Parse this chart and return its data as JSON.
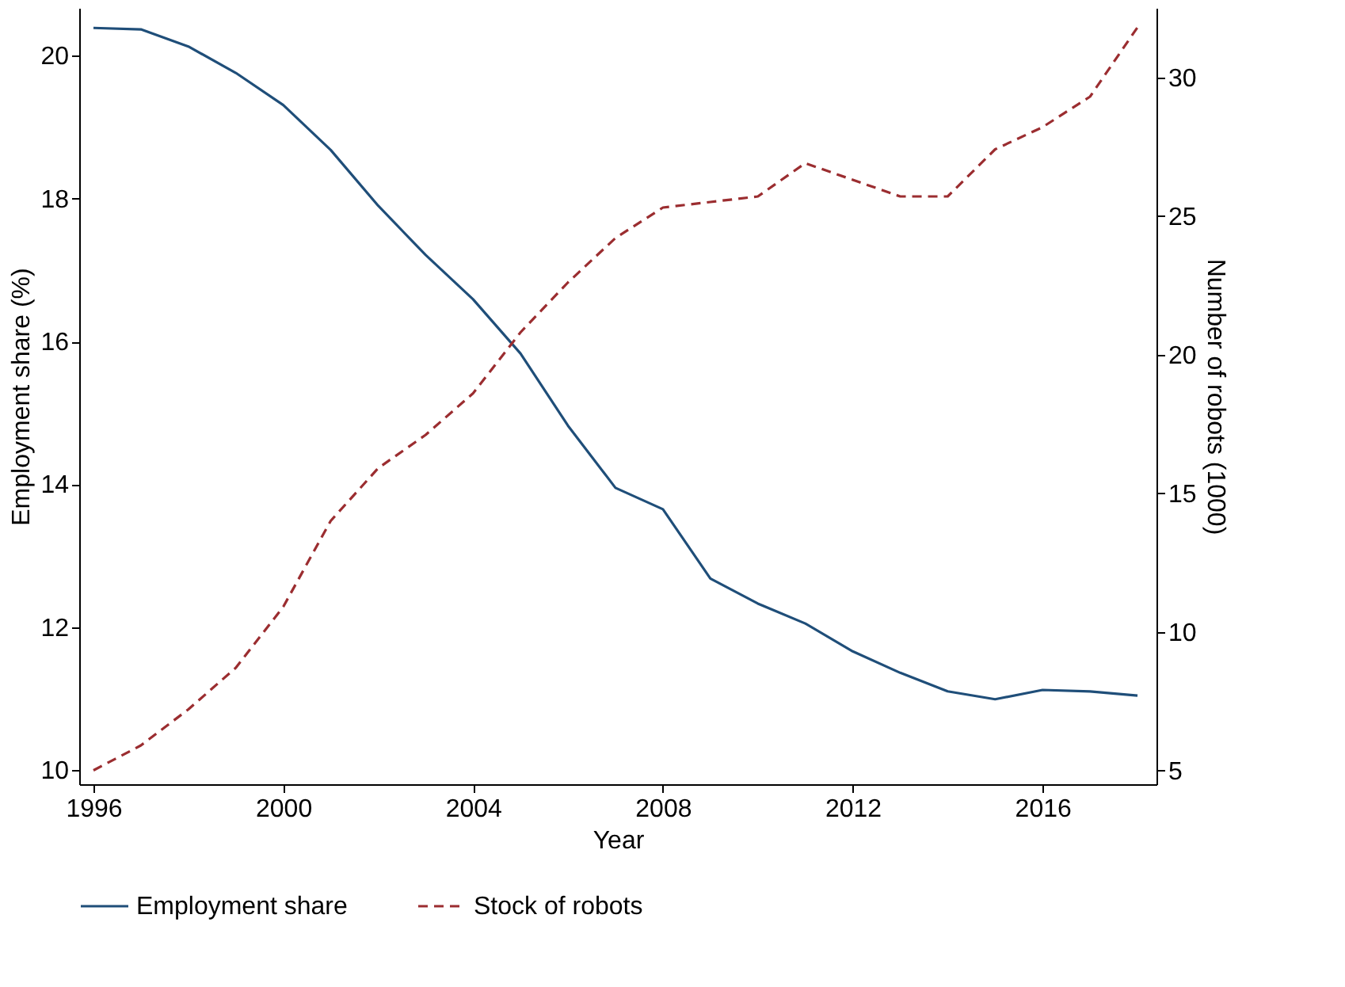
{
  "chart_data": {
    "type": "line",
    "xlabel": "Year",
    "ylabel": "Employment share (%)",
    "y2label": "Number of robots (1000)",
    "x": [
      1996,
      1997,
      1998,
      1999,
      2000,
      2001,
      2002,
      2003,
      2004,
      2005,
      2006,
      2007,
      2008,
      2009,
      2010,
      2011,
      2012,
      2013,
      2014,
      2015,
      2016,
      2017,
      2018
    ],
    "series": [
      {
        "name": "Employment share",
        "color": "#1f4e79",
        "line_style": "solid",
        "values": [
          20.39,
          20.37,
          20.13,
          19.76,
          19.31,
          18.68,
          17.9,
          17.21,
          16.59,
          15.83,
          14.82,
          13.95,
          13.65,
          12.68,
          12.33,
          12.05,
          11.66,
          11.36,
          11.1,
          10.99,
          11.12,
          11.1,
          11.04
        ]
      },
      {
        "name": "Stock of robots",
        "color": "#9b2d30",
        "line_style": "dashed",
        "axis": "y2",
        "values": [
          5.0,
          5.9,
          7.2,
          8.7,
          10.9,
          14.0,
          15.9,
          17.1,
          18.6,
          20.8,
          22.6,
          24.2,
          25.3,
          25.5,
          25.7,
          26.9,
          26.3,
          25.7,
          25.7,
          27.4,
          28.2,
          29.3,
          31.8
        ]
      }
    ],
    "xlim": [
      1995.7,
      2018.4
    ],
    "xticks": [
      1996,
      2000,
      2004,
      2008,
      2012,
      2016
    ],
    "ylim": [
      9.8,
      20.67
    ],
    "yticks": [
      10,
      12,
      14,
      16,
      18,
      20
    ],
    "y2lim": [
      4.5,
      32.5
    ],
    "y2ticks": [
      5,
      10,
      15,
      20,
      25,
      30
    ],
    "grid": false,
    "legend": "bottom"
  }
}
